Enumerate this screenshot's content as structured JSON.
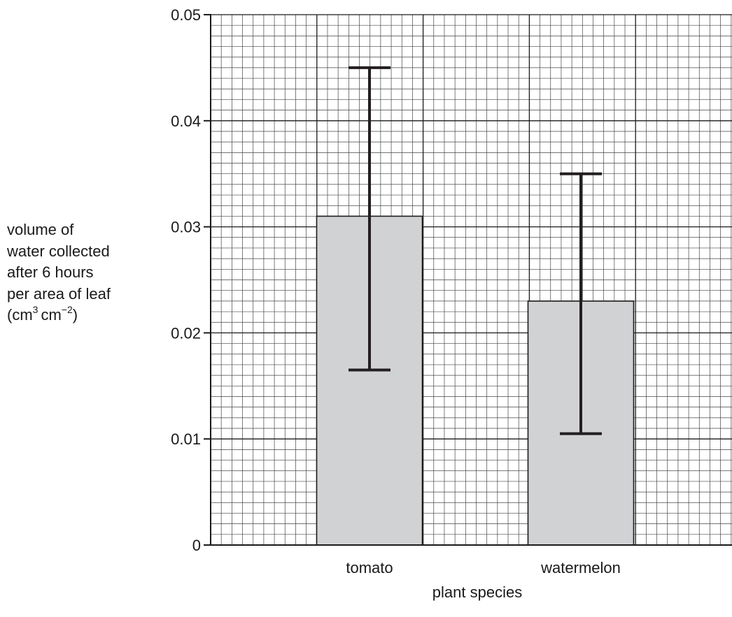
{
  "chart_data": {
    "type": "bar",
    "categories": [
      "tomato",
      "watermelon"
    ],
    "values": [
      0.031,
      0.023
    ],
    "error_bars": [
      {
        "category": "tomato",
        "low": 0.0165,
        "high": 0.045
      },
      {
        "category": "watermelon",
        "low": 0.0105,
        "high": 0.035
      }
    ],
    "xlabel": "plant species",
    "ylabel_lines": [
      "volume of",
      "water collected",
      "after 6 hours",
      "per area of leaf"
    ],
    "ylabel_units": {
      "open": "(cm",
      "sup1": "3",
      "mid": "cm",
      "sup2": "−2",
      "close": ")"
    },
    "yticks": [
      "0",
      "0.01",
      "0.02",
      "0.03",
      "0.04",
      "0.05"
    ],
    "ylim": [
      0,
      0.05
    ],
    "grid": true,
    "bar_color": "#d1d2d4"
  }
}
